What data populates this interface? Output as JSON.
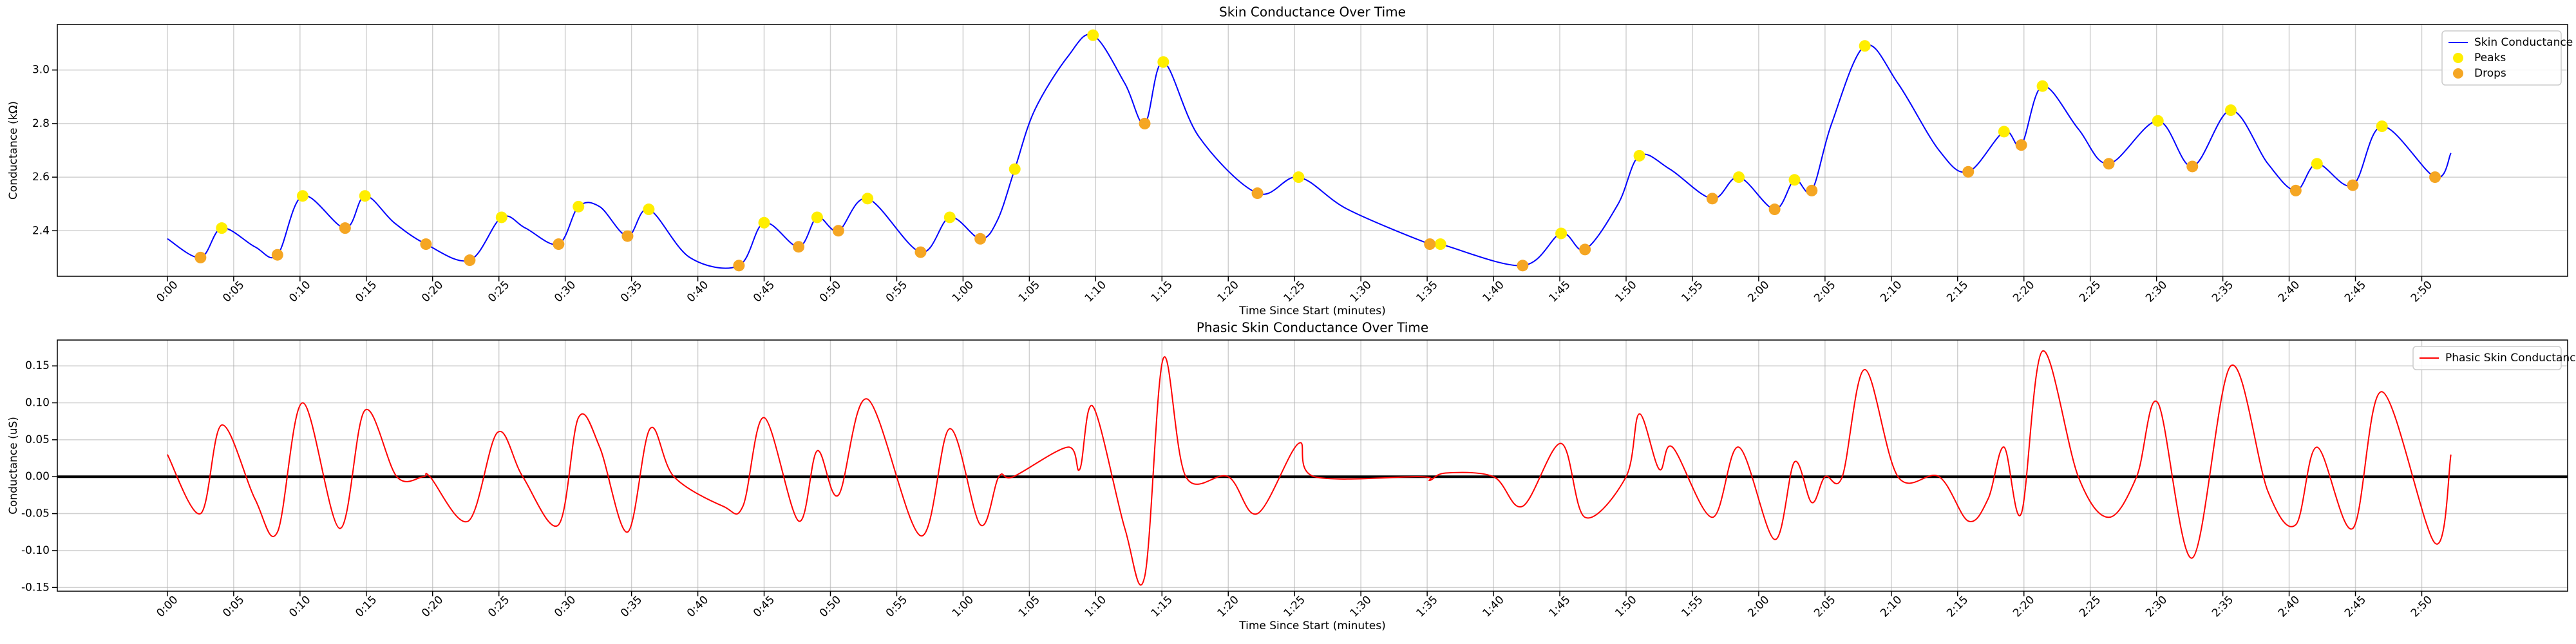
{
  "chart_data": [
    {
      "type": "line",
      "title": "Skin Conductance Over Time",
      "xlabel": "Time Since Start (minutes)",
      "ylabel": "Conductance (kΩ)",
      "xlim": [
        -8.3,
        181
      ],
      "ylim": [
        2.23,
        3.17
      ],
      "grid": true,
      "legend": "upper right",
      "yticks": [
        2.4,
        2.6,
        2.8,
        {
          "value": 3.0,
          "label": "3.0"
        }
      ],
      "xticks": [
        {
          "value": 0,
          "label": "0:00"
        },
        {
          "value": 5,
          "label": "0:05"
        },
        {
          "value": 10,
          "label": "0:10"
        },
        {
          "value": 15,
          "label": "0:15"
        },
        {
          "value": 20,
          "label": "0:20"
        },
        {
          "value": 25,
          "label": "0:25"
        },
        {
          "value": 30,
          "label": "0:30"
        },
        {
          "value": 35,
          "label": "0:35"
        },
        {
          "value": 40,
          "label": "0:40"
        },
        {
          "value": 45,
          "label": "0:45"
        },
        {
          "value": 50,
          "label": "0:50"
        },
        {
          "value": 55,
          "label": "0:55"
        },
        {
          "value": 60,
          "label": "1:00"
        },
        {
          "value": 65,
          "label": "1:05"
        },
        {
          "value": 70,
          "label": "1:10"
        },
        {
          "value": 75,
          "label": "1:15"
        },
        {
          "value": 80,
          "label": "1:20"
        },
        {
          "value": 85,
          "label": "1:25"
        },
        {
          "value": 90,
          "label": "1:30"
        },
        {
          "value": 95,
          "label": "1:35"
        },
        {
          "value": 100,
          "label": "1:40"
        },
        {
          "value": 105,
          "label": "1:45"
        },
        {
          "value": 110,
          "label": "1:50"
        },
        {
          "value": 115,
          "label": "1:55"
        },
        {
          "value": 120,
          "label": "2:00"
        },
        {
          "value": 125,
          "label": "2:05"
        },
        {
          "value": 130,
          "label": "2:10"
        },
        {
          "value": 135,
          "label": "2:15"
        },
        {
          "value": 140,
          "label": "2:20"
        },
        {
          "value": 145,
          "label": "2:25"
        },
        {
          "value": 150,
          "label": "2:30"
        },
        {
          "value": 155,
          "label": "2:35"
        },
        {
          "value": 160,
          "label": "2:40"
        },
        {
          "value": 165,
          "label": "2:45"
        },
        {
          "value": 170,
          "label": "2:50"
        }
      ],
      "series": [
        {
          "name": "Skin Conductance",
          "type": "line",
          "color": "#0000ff",
          "x": [
            0,
            2.5,
            4.1,
            6.6,
            8.3,
            10.2,
            13.4,
            14.9,
            17.1,
            19.5,
            22.8,
            25.2,
            27,
            29.5,
            31,
            32.6,
            34.7,
            36.3,
            39.4,
            43.1,
            45,
            47.6,
            49,
            50.6,
            52.8,
            56.8,
            59,
            61.3,
            62.6,
            63.9,
            65.4,
            67.9,
            69.8,
            72.2,
            73.7,
            75.1,
            77.8,
            82.2,
            85.3,
            89,
            95.2,
            96,
            102.2,
            105.1,
            106.9,
            109.4,
            111,
            113.3,
            116.5,
            118.5,
            121.2,
            122.7,
            124,
            125.5,
            128,
            130.5,
            133.6,
            135.8,
            138.5,
            139.8,
            141.4,
            144.1,
            146.4,
            150.1,
            152.7,
            155.6,
            158.4,
            160.5,
            162.1,
            164.8,
            167,
            171,
            172.2
          ],
          "values": [
            2.37,
            2.3,
            2.41,
            2.34,
            2.31,
            2.53,
            2.41,
            2.53,
            2.43,
            2.35,
            2.29,
            2.45,
            2.41,
            2.35,
            2.49,
            2.49,
            2.38,
            2.48,
            2.3,
            2.27,
            2.43,
            2.34,
            2.45,
            2.4,
            2.52,
            2.32,
            2.45,
            2.37,
            2.44,
            2.63,
            2.85,
            3.05,
            3.13,
            2.95,
            2.8,
            3.03,
            2.75,
            2.54,
            2.6,
            2.48,
            2.35,
            2.35,
            2.27,
            2.39,
            2.33,
            2.5,
            2.68,
            2.63,
            2.52,
            2.6,
            2.48,
            2.59,
            2.55,
            2.8,
            3.09,
            2.95,
            2.7,
            2.62,
            2.77,
            2.72,
            2.94,
            2.78,
            2.65,
            2.81,
            2.64,
            2.85,
            2.65,
            2.55,
            2.65,
            2.57,
            2.79,
            2.6,
            2.69
          ]
        },
        {
          "name": "Peaks",
          "type": "scatter",
          "color": "#ffee00",
          "x": [
            4.1,
            10.2,
            14.9,
            25.2,
            31,
            36.3,
            45,
            49,
            52.8,
            59,
            63.9,
            69.8,
            75.1,
            85.3,
            96,
            105.1,
            111,
            118.5,
            122.7,
            128,
            138.5,
            141.4,
            150.1,
            155.6,
            162.1,
            167
          ],
          "values": [
            2.41,
            2.53,
            2.53,
            2.45,
            2.49,
            2.48,
            2.43,
            2.45,
            2.52,
            2.45,
            2.63,
            3.13,
            3.03,
            2.6,
            2.35,
            2.39,
            2.68,
            2.6,
            2.59,
            3.09,
            2.77,
            2.94,
            2.81,
            2.85,
            2.65,
            2.79
          ]
        },
        {
          "name": "Drops",
          "type": "scatter",
          "color": "#f5a623",
          "x": [
            2.5,
            8.3,
            13.4,
            19.5,
            22.8,
            29.5,
            34.7,
            43.1,
            47.6,
            50.6,
            56.8,
            61.3,
            73.7,
            82.2,
            95.2,
            102.2,
            106.9,
            116.5,
            121.2,
            124,
            135.8,
            139.8,
            146.4,
            152.7,
            160.5,
            164.8,
            171
          ],
          "values": [
            2.3,
            2.31,
            2.41,
            2.35,
            2.29,
            2.35,
            2.38,
            2.27,
            2.34,
            2.4,
            2.32,
            2.37,
            2.8,
            2.54,
            2.35,
            2.27,
            2.33,
            2.52,
            2.48,
            2.55,
            2.62,
            2.72,
            2.65,
            2.64,
            2.55,
            2.57,
            2.6
          ]
        }
      ]
    },
    {
      "type": "line",
      "title": "Phasic Skin Conductance Over Time",
      "xlabel": "Time Since Start (minutes)",
      "ylabel": "Conductance (uS)",
      "xlim": [
        -8.3,
        181
      ],
      "ylim": [
        -0.155,
        0.185
      ],
      "grid": true,
      "legend": "upper right",
      "hline": 0,
      "yticks": [
        -0.15,
        {
          "value": -0.1,
          "label": "-0.10"
        },
        -0.05,
        {
          "value": 0,
          "label": "0.00"
        },
        0.05,
        {
          "value": 0.1,
          "label": "0.10"
        },
        0.15
      ],
      "xticks": [
        {
          "value": 0,
          "label": "0:00"
        },
        {
          "value": 5,
          "label": "0:05"
        },
        {
          "value": 10,
          "label": "0:10"
        },
        {
          "value": 15,
          "label": "0:15"
        },
        {
          "value": 20,
          "label": "0:20"
        },
        {
          "value": 25,
          "label": "0:25"
        },
        {
          "value": 30,
          "label": "0:30"
        },
        {
          "value": 35,
          "label": "0:35"
        },
        {
          "value": 40,
          "label": "0:40"
        },
        {
          "value": 45,
          "label": "0:45"
        },
        {
          "value": 50,
          "label": "0:50"
        },
        {
          "value": 55,
          "label": "0:55"
        },
        {
          "value": 60,
          "label": "1:00"
        },
        {
          "value": 65,
          "label": "1:05"
        },
        {
          "value": 70,
          "label": "1:10"
        },
        {
          "value": 75,
          "label": "1:15"
        },
        {
          "value": 80,
          "label": "1:20"
        },
        {
          "value": 85,
          "label": "1:25"
        },
        {
          "value": 90,
          "label": "1:30"
        },
        {
          "value": 95,
          "label": "1:35"
        },
        {
          "value": 100,
          "label": "1:40"
        },
        {
          "value": 105,
          "label": "1:45"
        },
        {
          "value": 110,
          "label": "1:50"
        },
        {
          "value": 115,
          "label": "1:55"
        },
        {
          "value": 120,
          "label": "2:00"
        },
        {
          "value": 125,
          "label": "2:05"
        },
        {
          "value": 130,
          "label": "2:10"
        },
        {
          "value": 135,
          "label": "2:15"
        },
        {
          "value": 140,
          "label": "2:20"
        },
        {
          "value": 145,
          "label": "2:25"
        },
        {
          "value": 150,
          "label": "2:30"
        },
        {
          "value": 155,
          "label": "2:35"
        },
        {
          "value": 160,
          "label": "2:40"
        },
        {
          "value": 165,
          "label": "2:45"
        },
        {
          "value": 170,
          "label": "2:50"
        }
      ],
      "series": [
        {
          "name": "Phasic Skin Conductance",
          "type": "line",
          "color": "#ff0000",
          "x": [
            0,
            2.5,
            4.1,
            6.6,
            8.3,
            10.2,
            13,
            14.9,
            17.3,
            19.3,
            19.8,
            22.7,
            24.9,
            26.8,
            29.5,
            31,
            32.6,
            34.7,
            36.4,
            38.2,
            41.9,
            43.4,
            45,
            47.6,
            49,
            50.6,
            52.8,
            56.8,
            59,
            61.3,
            62.7,
            63.8,
            67.9,
            68.8,
            69.8,
            72.2,
            73.7,
            75.1,
            76.8,
            80,
            82.2,
            85.3,
            86.5,
            94.5,
            95.2,
            96.4,
            100,
            102.2,
            105.1,
            106.9,
            110,
            111,
            112.5,
            113.5,
            116.5,
            118.5,
            121.2,
            122.7,
            124,
            125,
            126.3,
            128,
            130.5,
            133.6,
            135.8,
            137.3,
            138.5,
            139.8,
            141.4,
            144.1,
            146.4,
            148.5,
            150.1,
            152.7,
            155.6,
            158.4,
            160.5,
            162.1,
            164.8,
            167,
            171,
            172.2
          ],
          "values": [
            0.03,
            -0.05,
            0.07,
            -0.03,
            -0.075,
            0.1,
            -0.07,
            0.09,
            0.0,
            0.0,
            0.0,
            -0.06,
            0.06,
            0.0,
            -0.065,
            0.08,
            0.04,
            -0.075,
            0.065,
            0.0,
            -0.04,
            -0.04,
            0.08,
            -0.06,
            0.035,
            -0.025,
            0.105,
            -0.08,
            0.065,
            -0.065,
            0.0,
            0.0,
            0.04,
            0.01,
            0.095,
            -0.07,
            -0.135,
            0.16,
            0.0,
            0.0,
            -0.05,
            0.045,
            0.0,
            0.0,
            -0.005,
            0.005,
            0.0,
            -0.04,
            0.045,
            -0.055,
            0.0,
            0.085,
            0.01,
            0.04,
            -0.055,
            0.04,
            -0.085,
            0.02,
            -0.035,
            0.0,
            0.0,
            0.145,
            0.0,
            0.0,
            -0.06,
            -0.03,
            0.04,
            -0.05,
            0.17,
            0.0,
            -0.055,
            0.0,
            0.1,
            -0.11,
            0.15,
            -0.02,
            -0.065,
            0.04,
            -0.07,
            0.115,
            -0.09,
            0.03
          ]
        }
      ]
    }
  ]
}
